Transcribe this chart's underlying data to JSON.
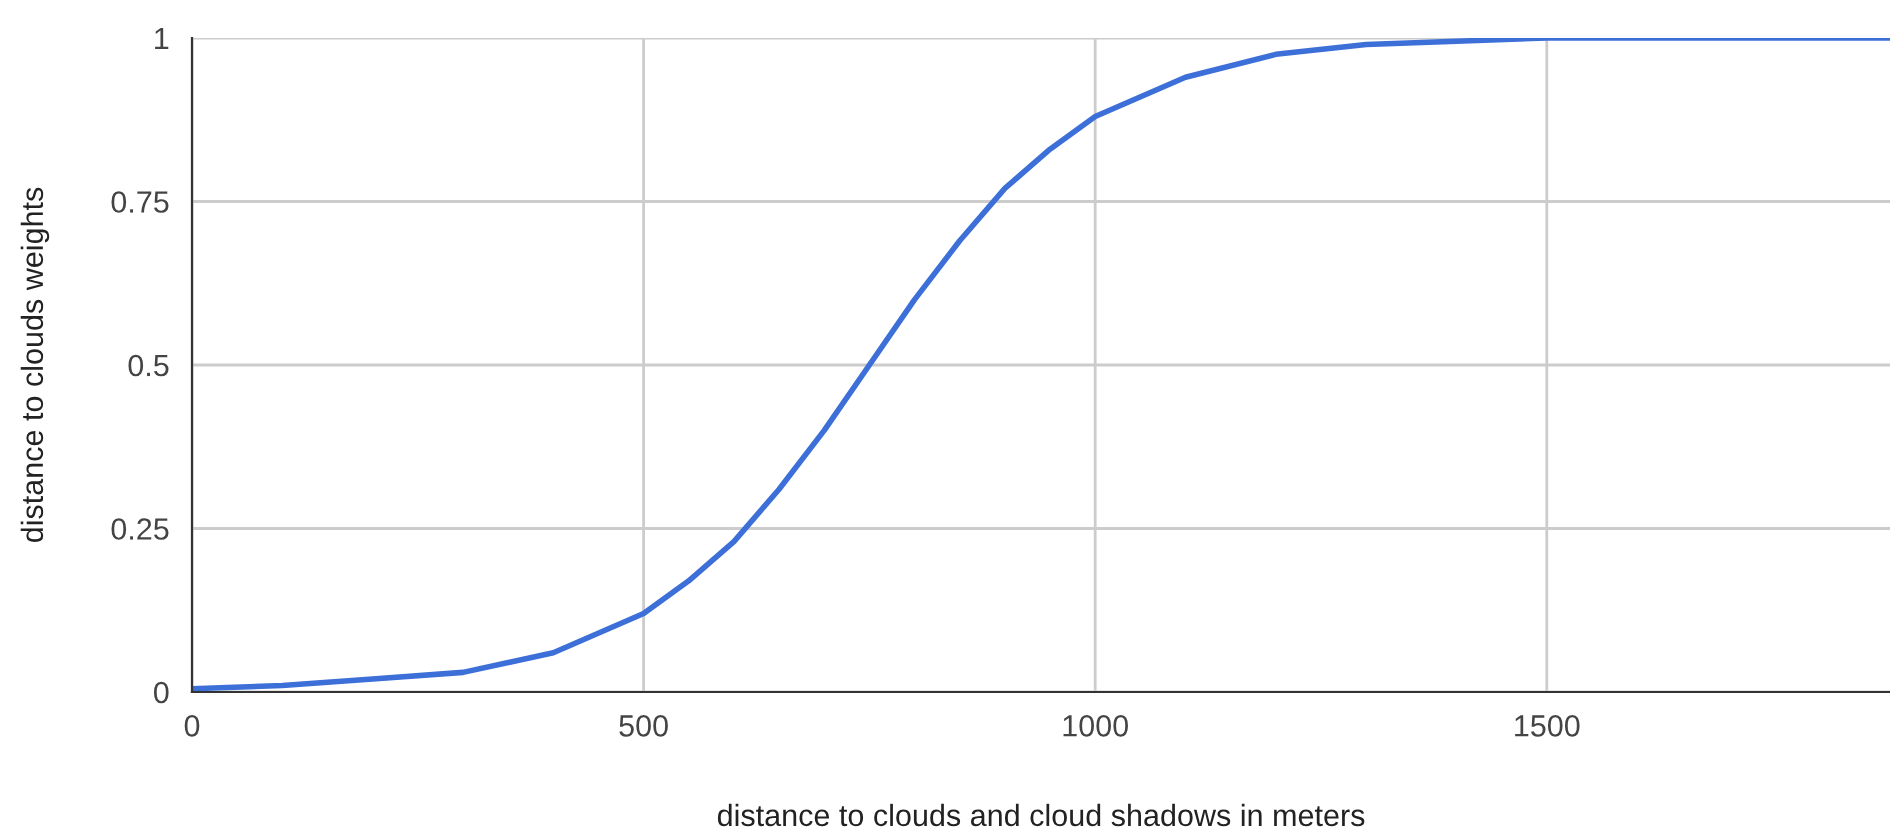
{
  "chart_data": {
    "type": "line",
    "xlabel": "distance to clouds and cloud shadows in meters",
    "ylabel": "distance to clouds weights",
    "x": [
      0,
      100,
      200,
      300,
      400,
      500,
      550,
      600,
      650,
      700,
      750,
      800,
      850,
      900,
      950,
      1000,
      1100,
      1200,
      1300,
      1400,
      1500,
      1600,
      1700,
      1800,
      1880
    ],
    "series": [
      {
        "color": "#3c6fd8",
        "values": [
          0.005,
          0.01,
          0.02,
          0.03,
          0.06,
          0.12,
          0.17,
          0.23,
          0.31,
          0.4,
          0.5,
          0.6,
          0.69,
          0.77,
          0.83,
          0.88,
          0.94,
          0.975,
          0.99,
          0.995,
          1,
          1,
          1,
          1,
          1
        ]
      }
    ],
    "xlim": [
      0,
      1880
    ],
    "ylim": [
      0,
      1
    ],
    "xticks": [
      0,
      500,
      1000,
      1500
    ],
    "yticks": [
      0,
      0.25,
      0.5,
      0.75,
      1
    ],
    "grid": true,
    "legend": false,
    "marker": "none",
    "line_style": "solid"
  }
}
